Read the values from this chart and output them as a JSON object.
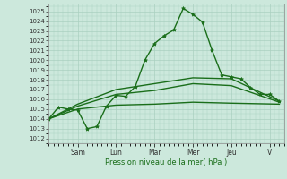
{
  "xlabel": "Pression niveau de la mer( hPa )",
  "bg_color": "#cce8dc",
  "grid_color": "#aad0c0",
  "line_color": "#1a6e1a",
  "ylim": [
    1011.5,
    1025.8
  ],
  "yticks": [
    1012,
    1013,
    1014,
    1015,
    1016,
    1017,
    1018,
    1019,
    1020,
    1021,
    1022,
    1023,
    1024,
    1025
  ],
  "day_labels": [
    "Sam",
    "Lun",
    "Mar",
    "Mer",
    "Jeu",
    "V"
  ],
  "day_positions": [
    24,
    56,
    88,
    120,
    152,
    184
  ],
  "xlim": [
    0,
    196
  ],
  "series": [
    {
      "x": [
        0,
        8,
        16,
        24,
        32,
        40,
        48,
        56,
        64,
        72,
        80,
        88,
        96,
        104,
        112,
        120,
        128,
        136,
        144,
        152,
        160,
        168,
        176,
        184,
        192
      ],
      "y": [
        1014.0,
        1015.2,
        1015.0,
        1014.9,
        1013.0,
        1013.2,
        1015.3,
        1016.4,
        1016.3,
        1017.3,
        1020.0,
        1021.7,
        1022.5,
        1023.1,
        1025.3,
        1024.7,
        1023.9,
        1021.0,
        1018.5,
        1018.3,
        1018.1,
        1017.2,
        1016.5,
        1016.5,
        1015.8
      ],
      "marker": true,
      "linewidth": 1.0
    },
    {
      "x": [
        0,
        24,
        56,
        88,
        120,
        152,
        192
      ],
      "y": [
        1014.0,
        1015.5,
        1017.0,
        1017.6,
        1018.2,
        1018.1,
        1015.8
      ],
      "marker": false,
      "linewidth": 1.0
    },
    {
      "x": [
        0,
        24,
        56,
        88,
        120,
        152,
        192
      ],
      "y": [
        1014.0,
        1015.3,
        1016.5,
        1016.9,
        1017.6,
        1017.4,
        1015.7
      ],
      "marker": false,
      "linewidth": 1.0
    },
    {
      "x": [
        0,
        24,
        56,
        88,
        120,
        152,
        192
      ],
      "y": [
        1014.0,
        1015.0,
        1015.4,
        1015.5,
        1015.7,
        1015.6,
        1015.5
      ],
      "marker": false,
      "linewidth": 1.0
    }
  ]
}
